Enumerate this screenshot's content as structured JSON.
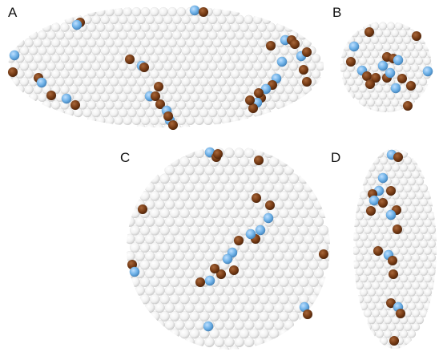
{
  "figure": {
    "panels": [
      {
        "id": "A",
        "label": "A",
        "view": "side-long"
      },
      {
        "id": "B",
        "label": "B",
        "view": "end-on"
      },
      {
        "id": "C",
        "label": "C",
        "view": "top"
      },
      {
        "id": "D",
        "label": "D",
        "view": "side-narrow"
      }
    ],
    "colors": {
      "bead": "#f4f4f4",
      "bead_edge": "#c9c9c9",
      "defect_blue": "#6fb2e8",
      "defect_brown": "#7a3e17"
    }
  }
}
